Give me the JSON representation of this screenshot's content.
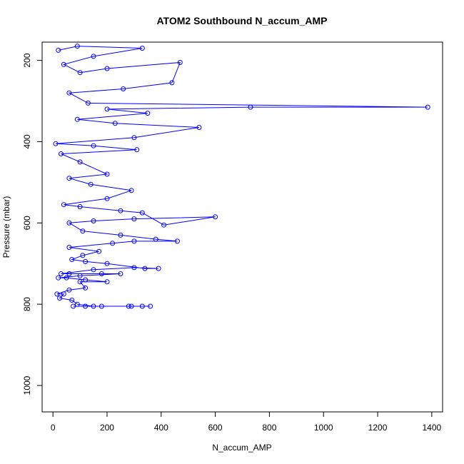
{
  "chart_data": {
    "type": "scatter",
    "title": "ATOM2 Southbound N_accum_AMP",
    "xlabel": "N_accum_AMP",
    "ylabel": "Pressure (mbar)",
    "xlim": [
      -40,
      1440
    ],
    "ylim": [
      1065,
      155
    ],
    "y_inverted": true,
    "x_ticks": [
      0,
      200,
      400,
      600,
      800,
      1000,
      1200,
      1400
    ],
    "y_ticks": [
      200,
      400,
      600,
      800,
      1000
    ],
    "series": [
      {
        "name": "N_accum_AMP",
        "color": "#0000ff",
        "marker": "open-circle",
        "connected": true,
        "points": [
          {
            "x": 75,
            "y": 805
          },
          {
            "x": 120,
            "y": 805
          },
          {
            "x": 180,
            "y": 805
          },
          {
            "x": 280,
            "y": 805
          },
          {
            "x": 330,
            "y": 805
          },
          {
            "x": 360,
            "y": 805
          },
          {
            "x": 290,
            "y": 805
          },
          {
            "x": 150,
            "y": 805
          },
          {
            "x": 90,
            "y": 800
          },
          {
            "x": 70,
            "y": 790
          },
          {
            "x": 25,
            "y": 785
          },
          {
            "x": 40,
            "y": 775
          },
          {
            "x": 15,
            "y": 775
          },
          {
            "x": 60,
            "y": 765
          },
          {
            "x": 120,
            "y": 760
          },
          {
            "x": 100,
            "y": 745
          },
          {
            "x": 200,
            "y": 745
          },
          {
            "x": 120,
            "y": 740
          },
          {
            "x": 50,
            "y": 735
          },
          {
            "x": 20,
            "y": 735
          },
          {
            "x": 100,
            "y": 730
          },
          {
            "x": 250,
            "y": 725
          },
          {
            "x": 180,
            "y": 725
          },
          {
            "x": 60,
            "y": 725
          },
          {
            "x": 30,
            "y": 725
          },
          {
            "x": 150,
            "y": 715
          },
          {
            "x": 300,
            "y": 710
          },
          {
            "x": 390,
            "y": 712
          },
          {
            "x": 340,
            "y": 712
          },
          {
            "x": 200,
            "y": 700
          },
          {
            "x": 120,
            "y": 695
          },
          {
            "x": 70,
            "y": 690
          },
          {
            "x": 110,
            "y": 680
          },
          {
            "x": 170,
            "y": 670
          },
          {
            "x": 60,
            "y": 660
          },
          {
            "x": 220,
            "y": 650
          },
          {
            "x": 300,
            "y": 645
          },
          {
            "x": 460,
            "y": 645
          },
          {
            "x": 380,
            "y": 640
          },
          {
            "x": 250,
            "y": 630
          },
          {
            "x": 110,
            "y": 620
          },
          {
            "x": 60,
            "y": 600
          },
          {
            "x": 150,
            "y": 595
          },
          {
            "x": 300,
            "y": 590
          },
          {
            "x": 600,
            "y": 585
          },
          {
            "x": 410,
            "y": 605
          },
          {
            "x": 330,
            "y": 575
          },
          {
            "x": 250,
            "y": 570
          },
          {
            "x": 100,
            "y": 560
          },
          {
            "x": 40,
            "y": 555
          },
          {
            "x": 200,
            "y": 540
          },
          {
            "x": 290,
            "y": 520
          },
          {
            "x": 140,
            "y": 505
          },
          {
            "x": 60,
            "y": 490
          },
          {
            "x": 200,
            "y": 480
          },
          {
            "x": 100,
            "y": 450
          },
          {
            "x": 30,
            "y": 430
          },
          {
            "x": 310,
            "y": 420
          },
          {
            "x": 150,
            "y": 410
          },
          {
            "x": 10,
            "y": 405
          },
          {
            "x": 300,
            "y": 390
          },
          {
            "x": 540,
            "y": 365
          },
          {
            "x": 230,
            "y": 355
          },
          {
            "x": 90,
            "y": 345
          },
          {
            "x": 350,
            "y": 330
          },
          {
            "x": 200,
            "y": 320
          },
          {
            "x": 730,
            "y": 315
          },
          {
            "x": 1385,
            "y": 315
          },
          {
            "x": 130,
            "y": 305
          },
          {
            "x": 60,
            "y": 280
          },
          {
            "x": 260,
            "y": 270
          },
          {
            "x": 440,
            "y": 255
          },
          {
            "x": 470,
            "y": 205
          },
          {
            "x": 200,
            "y": 220
          },
          {
            "x": 100,
            "y": 230
          },
          {
            "x": 40,
            "y": 210
          },
          {
            "x": 150,
            "y": 190
          },
          {
            "x": 330,
            "y": 170
          },
          {
            "x": 90,
            "y": 165
          },
          {
            "x": 20,
            "y": 175
          }
        ]
      }
    ]
  }
}
